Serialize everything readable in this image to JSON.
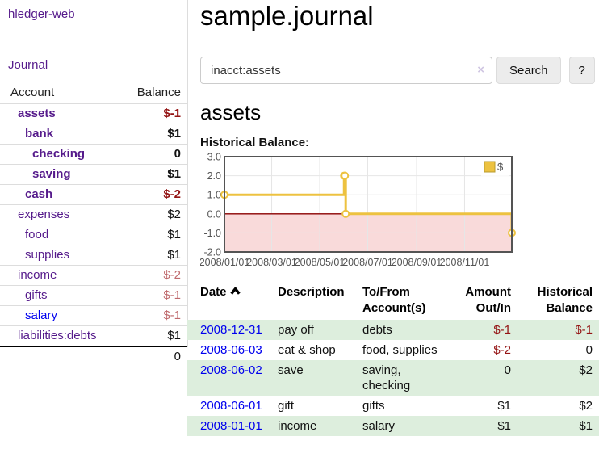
{
  "app": {
    "title": "hledger-web"
  },
  "colors": {
    "purple": "#551a8b",
    "blue": "#0000ee",
    "neg": "#941414",
    "neg_soft": "#bf6a6d",
    "green_row": "#ddeedd",
    "gold": "#edc240",
    "gold_border": "#b89b2e",
    "pink": "#f9dada",
    "zero_line": "#8b0000",
    "chart_border": "#545454",
    "grid": "#e6e6e6",
    "axis_text": "#545454",
    "divider": "#dddddd",
    "button_bg": "#ececec"
  },
  "sidebar": {
    "journal_link": "Journal",
    "table": {
      "account_header": "Account",
      "balance_header": "Balance",
      "rows": [
        {
          "label": "assets",
          "level": 1,
          "bold": true,
          "balance": "$-1",
          "tone": "negative",
          "link": "visited"
        },
        {
          "label": "bank",
          "level": 2,
          "bold": true,
          "balance": "$1",
          "tone": "default",
          "link": "visited"
        },
        {
          "label": "checking",
          "level": 3,
          "bold": true,
          "balance": "0",
          "tone": "default",
          "link": "visited"
        },
        {
          "label": "saving",
          "level": 3,
          "bold": true,
          "balance": "$1",
          "tone": "default",
          "link": "visited"
        },
        {
          "label": "cash",
          "level": 2,
          "bold": true,
          "balance": "$-2",
          "tone": "negative",
          "link": "visited"
        },
        {
          "label": "expenses",
          "level": 1,
          "bold": false,
          "balance": "$2",
          "tone": "default",
          "link": "visited"
        },
        {
          "label": "food",
          "level": 2,
          "bold": false,
          "balance": "$1",
          "tone": "default",
          "link": "visited"
        },
        {
          "label": "supplies",
          "level": 2,
          "bold": false,
          "balance": "$1",
          "tone": "default",
          "link": "visited"
        },
        {
          "label": "income",
          "level": 1,
          "bold": false,
          "balance": "$-2",
          "tone": "negative-soft",
          "link": "visited"
        },
        {
          "label": "gifts",
          "level": 2,
          "bold": false,
          "balance": "$-1",
          "tone": "negative-soft",
          "link": "visited"
        },
        {
          "label": "salary",
          "level": 2,
          "bold": false,
          "balance": "$-1",
          "tone": "negative-soft",
          "link": "unvisited"
        },
        {
          "label": "liabilities:debts",
          "level": 1,
          "bold": false,
          "balance": "$1",
          "tone": "default",
          "link": "visited"
        }
      ],
      "total": "0"
    }
  },
  "main": {
    "title": "sample.journal",
    "search": {
      "value": "inacct:assets",
      "clear_icon": "×",
      "button": "Search",
      "help_button": "?"
    },
    "account_heading": "assets",
    "chart_label": "Historical Balance:"
  },
  "chart_data": {
    "type": "line",
    "title": "Historical Balance:",
    "steps": true,
    "series": [
      {
        "name": "$",
        "color": "#edc240",
        "points": [
          [
            "2008-01-01",
            1
          ],
          [
            "2008-06-01",
            2
          ],
          [
            "2008-06-02",
            2
          ],
          [
            "2008-06-03",
            0
          ],
          [
            "2008-12-31",
            -1
          ]
        ]
      }
    ],
    "x_range": [
      "2008-01-01",
      "2008-12-31"
    ],
    "x_ticks": [
      "2008/01/01",
      "2008/03/01",
      "2008/05/01",
      "2008/07/01",
      "2008/09/01",
      "2008/11/01"
    ],
    "y_ticks": [
      "3.0",
      "2.0",
      "1.0",
      "0.0",
      "-1.0",
      "-2.0"
    ],
    "ylim": [
      -2,
      3
    ],
    "grid": true,
    "legend": {
      "label": "$",
      "position": "top-right"
    },
    "negative_region": true
  },
  "register_table": {
    "headers": [
      "Date",
      "Description",
      "To/From Account(s)",
      "Amount Out/In",
      "Historical Balance"
    ],
    "rows": [
      {
        "date": "2008-12-31",
        "description": "pay off",
        "accounts": "debts",
        "amount": "$-1",
        "amount_negative": true,
        "balance": "$-1",
        "balance_negative": true,
        "shaded": true
      },
      {
        "date": "2008-06-03",
        "description": "eat & shop",
        "accounts": "food, supplies",
        "amount": "$-2",
        "amount_negative": true,
        "balance": "0",
        "balance_negative": false,
        "shaded": false
      },
      {
        "date": "2008-06-02",
        "description": "save",
        "accounts": "saving, checking",
        "amount": "0",
        "amount_negative": false,
        "balance": "$2",
        "balance_negative": false,
        "shaded": true
      },
      {
        "date": "2008-06-01",
        "description": "gift",
        "accounts": "gifts",
        "amount": "$1",
        "amount_negative": false,
        "balance": "$2",
        "balance_negative": false,
        "shaded": false
      },
      {
        "date": "2008-01-01",
        "description": "income",
        "accounts": "salary",
        "amount": "$1",
        "amount_negative": false,
        "balance": "$1",
        "balance_negative": false,
        "shaded": true
      }
    ]
  }
}
